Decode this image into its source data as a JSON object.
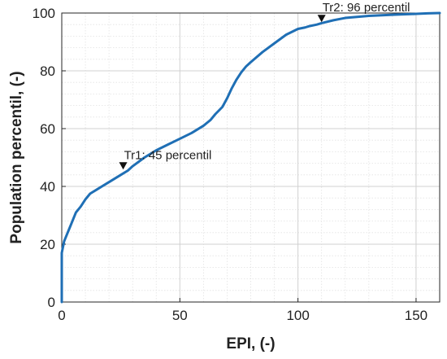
{
  "chart_data": {
    "type": "line",
    "title": "",
    "xlabel": "EPI, (-)",
    "ylabel": "Population percentil, (-)",
    "xlim": [
      0,
      160
    ],
    "ylim": [
      0,
      100
    ],
    "xticks": [
      0,
      50,
      100,
      150
    ],
    "yticks": [
      0,
      20,
      40,
      60,
      80,
      100
    ],
    "x_minor_step": 10,
    "y_minor_step": 4,
    "grid": true,
    "line_color": "#1f6fb5",
    "series": [
      {
        "x": [
          0,
          0,
          0.5,
          1,
          2,
          3,
          4,
          5,
          6,
          8,
          10,
          12,
          15,
          20,
          25,
          28,
          30,
          35,
          40,
          45,
          50,
          55,
          60,
          63,
          65,
          68,
          70,
          72,
          74,
          76,
          78,
          80,
          85,
          90,
          95,
          100,
          103,
          105,
          108,
          110,
          115,
          120,
          130,
          140,
          150,
          155,
          160
        ],
        "y": [
          0,
          17,
          19,
          21,
          23,
          25,
          27,
          29,
          31,
          33,
          35.5,
          37.5,
          39,
          41.5,
          44,
          45.5,
          47,
          50,
          52.5,
          54.5,
          56.5,
          58.5,
          61,
          63,
          65,
          67.5,
          70.5,
          74,
          77,
          79.5,
          81.5,
          83,
          86.5,
          89.5,
          92.5,
          94.5,
          95,
          95.5,
          96,
          96.5,
          97.5,
          98.3,
          99,
          99.4,
          99.7,
          99.9,
          100
        ]
      }
    ],
    "annotations": [
      {
        "text": "Tr1: 45 percentil",
        "x": 26,
        "y": 45
      },
      {
        "text": "Tr2: 96 percentil",
        "x": 110,
        "y": 96
      }
    ]
  }
}
